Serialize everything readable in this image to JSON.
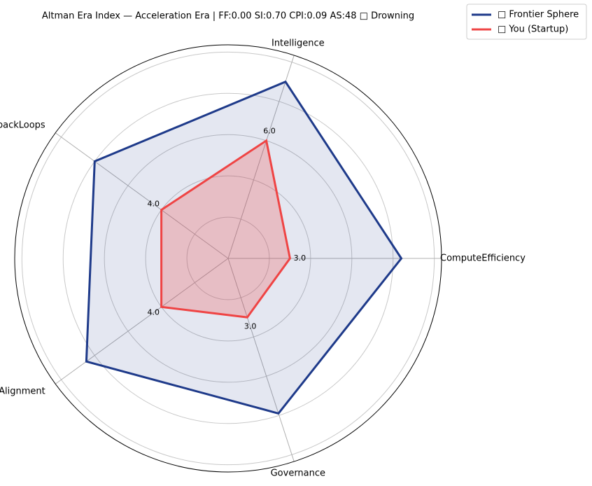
{
  "chart_data": {
    "type": "radar",
    "title": "Altman Era Index — Acceleration Era | FF:0.00 SI:0.70 CPI:0.09 AS:48 □ Drowning",
    "categories": [
      "ComputeEfficiency",
      "Intelligence",
      "FeedbackLoops",
      "Alignment",
      "Governance"
    ],
    "series": [
      {
        "name": "□ Frontier Sphere",
        "color": "#1e3a8a",
        "values": [
          8.4,
          9.0,
          8.0,
          8.5,
          7.9
        ]
      },
      {
        "name": "□ You (Startup)",
        "color": "#ef4444",
        "values": [
          3,
          6,
          4,
          4,
          3
        ],
        "value_labels": [
          "3.0",
          "6.0",
          "4.0",
          "4.0",
          "3.0"
        ]
      }
    ],
    "ylim": [
      0,
      10.35
    ],
    "yticks": [
      2,
      4,
      6,
      8,
      10
    ],
    "grid": true,
    "legend": "upper right"
  }
}
